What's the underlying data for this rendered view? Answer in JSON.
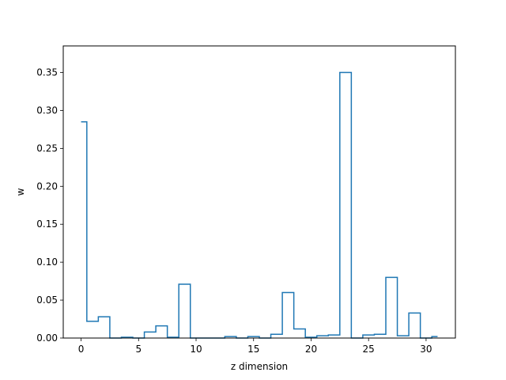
{
  "chart_data": {
    "type": "step",
    "xlabel": "z dimension",
    "ylabel": "w",
    "xlim": [
      -1.55,
      32.55
    ],
    "ylim": [
      0,
      0.385
    ],
    "xticks": [
      0,
      5,
      10,
      15,
      20,
      25,
      30
    ],
    "yticks": [
      0.0,
      0.05,
      0.1,
      0.15,
      0.2,
      0.25,
      0.3,
      0.35
    ],
    "ytick_labels": [
      "0.00",
      "0.05",
      "0.10",
      "0.15",
      "0.20",
      "0.25",
      "0.30",
      "0.35"
    ],
    "grid": false,
    "series": [
      {
        "color": "#1f77b4",
        "x": [
          0,
          1,
          2,
          3,
          4,
          5,
          6,
          7,
          8,
          9,
          10,
          11,
          12,
          13,
          14,
          15,
          16,
          17,
          18,
          19,
          20,
          21,
          22,
          23,
          24,
          25,
          26,
          27,
          28,
          29,
          30,
          31
        ],
        "values": [
          0.285,
          0.022,
          0.028,
          0.0,
          0.001,
          0.0,
          0.008,
          0.016,
          0.001,
          0.071,
          0.0,
          0.0,
          0.0,
          0.002,
          0.0,
          0.002,
          0.0,
          0.005,
          0.06,
          0.012,
          0.001,
          0.003,
          0.004,
          0.35,
          0.0,
          0.004,
          0.005,
          0.08,
          0.003,
          0.033,
          0.0,
          0.002
        ]
      }
    ]
  }
}
